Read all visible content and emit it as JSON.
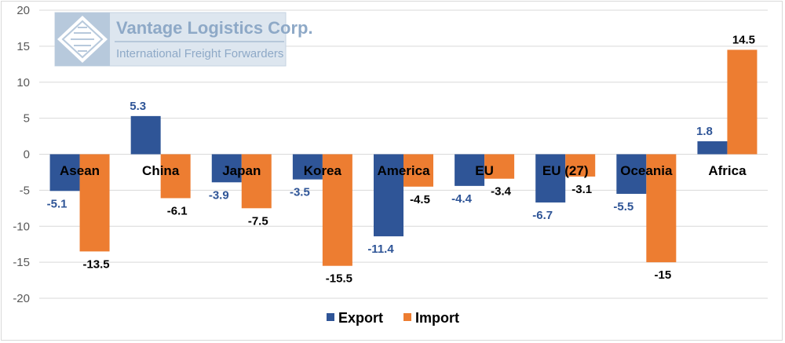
{
  "logo": {
    "company": "Vantage Logistics Corp.",
    "tagline": "International Freight Forwarders"
  },
  "chart_data": {
    "type": "bar",
    "categories": [
      "Asean",
      "China",
      "Japan",
      "Korea",
      "America",
      "EU",
      "EU (27)",
      "Oceania",
      "Africa"
    ],
    "series": [
      {
        "name": "Export",
        "color": "#2f5597",
        "values": [
          -5.1,
          5.3,
          -3.9,
          -3.5,
          -11.4,
          -4.4,
          -6.7,
          -5.5,
          1.8
        ]
      },
      {
        "name": "Import",
        "color": "#ed7d31",
        "values": [
          -13.5,
          -6.1,
          -7.5,
          -15.5,
          -4.5,
          -3.4,
          -3.1,
          -15,
          14.5
        ]
      }
    ],
    "ylim": [
      -20,
      20
    ],
    "yticks": [
      20,
      15,
      10,
      5,
      0,
      -5,
      -10,
      -15,
      -20
    ],
    "grid": true,
    "legend": "bottom",
    "title": "",
    "xlabel": "",
    "ylabel": ""
  }
}
